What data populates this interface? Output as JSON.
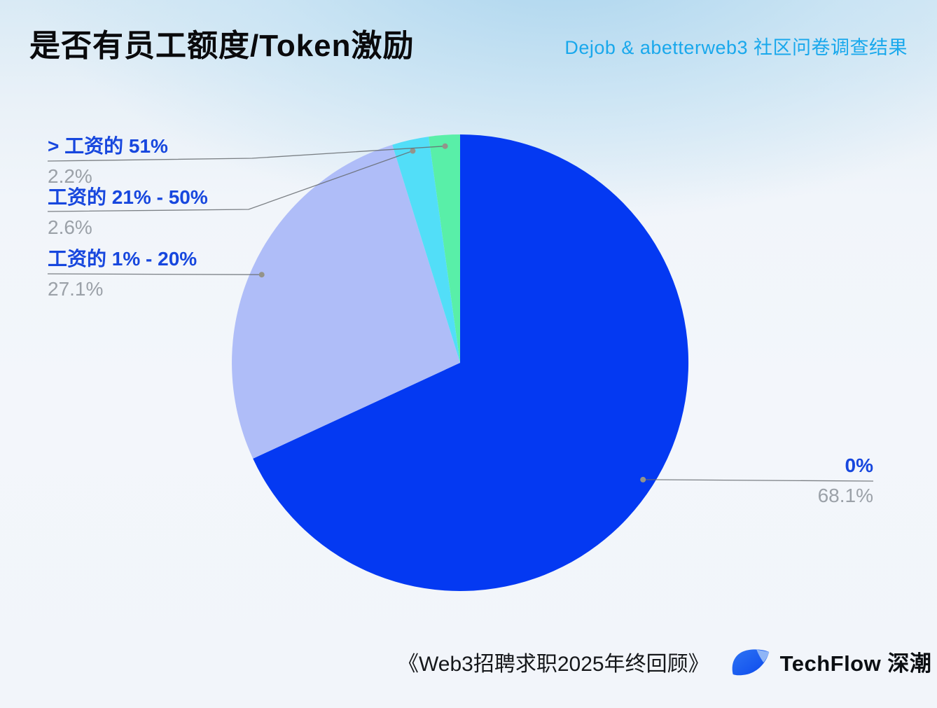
{
  "page": {
    "title": "是否有员工额度/Token激励",
    "subtitle": "Dejob & abetterweb3 社区问卷调查结果"
  },
  "chart_data": {
    "type": "pie",
    "title": "是否有员工额度/Token激励",
    "start_angle": "12-oclock",
    "direction": "clockwise",
    "slices": [
      {
        "label": "0%",
        "value": 68.1,
        "display_value": "68.1%",
        "color": "#0439F2"
      },
      {
        "label": "工资的 1% - 20%",
        "value": 27.1,
        "display_value": "27.1%",
        "color": "#AFBDF8"
      },
      {
        "label": "工资的 21% - 50%",
        "value": 2.6,
        "display_value": "2.6%",
        "color": "#52DEF8"
      },
      {
        "label": "> 工资的 51%",
        "value": 2.2,
        "display_value": "2.2%",
        "color": "#59EFA8"
      }
    ],
    "legend_position": "callout-labels"
  },
  "footer": {
    "source": "《Web3招聘求职2025年终回顾》",
    "brand": "TechFlow 深潮"
  },
  "colors": {
    "title_text": "#0A0A0C",
    "subtitle_text": "#19A8EC",
    "callout_label": "#1747DE",
    "callout_value": "#9BA1A8",
    "leader_line": "#666B70",
    "leader_dot": "#94938A",
    "logo_blue": "#1A5FF2",
    "logo_light_blue": "#8FB5F6"
  }
}
